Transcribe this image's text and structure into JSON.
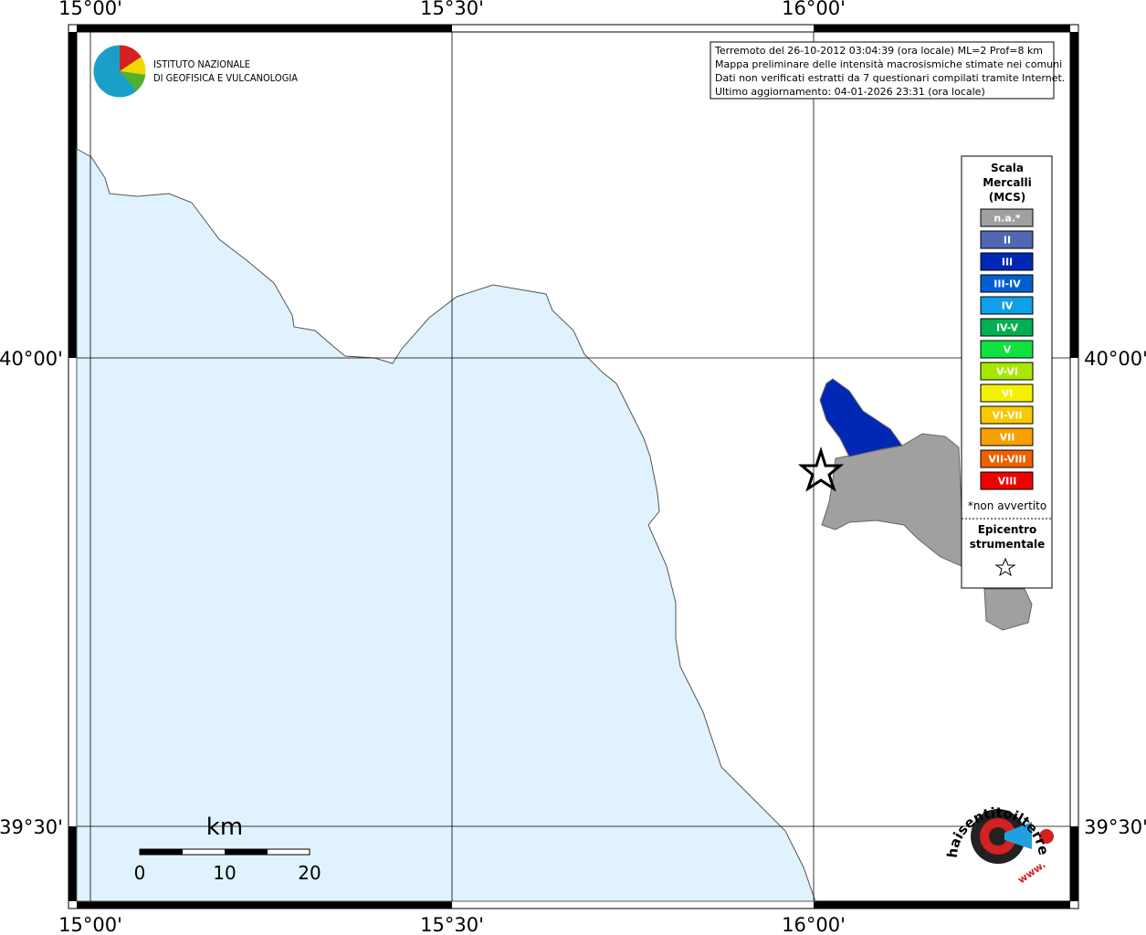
{
  "map": {
    "lon_labels": [
      "15°00'",
      "15°30'",
      "16°00'"
    ],
    "lat_labels": [
      "40°00'",
      "39°30'"
    ],
    "logo_ingv": [
      "ISTITUTO NAZIONALE",
      "DI GEOFISICA E VULCANOLOGIA"
    ],
    "info": [
      "Terremoto del 26-10-2012 03:04:39 (ora locale) ML=2 Prof=8 km",
      "Mappa preliminare delle intensità macrosismiche stimate nei comuni",
      "Dati non verificati estratti da 7 questionari compilati tramite Internet.",
      "Ultimo aggiornamento: 04-01-2026 23:31 (ora locale)"
    ],
    "legend": {
      "title": [
        "Scala",
        "Mercalli",
        "(MCS)"
      ],
      "items": [
        {
          "label": "n.a.*",
          "color": "#a0a0a0"
        },
        {
          "label": "II",
          "color": "#5068b4"
        },
        {
          "label": "III",
          "color": "#0028b4"
        },
        {
          "label": "III-IV",
          "color": "#0060d0"
        },
        {
          "label": "IV",
          "color": "#10a0e8"
        },
        {
          "label": "IV-V",
          "color": "#00b050"
        },
        {
          "label": "V",
          "color": "#10e040"
        },
        {
          "label": "V-VI",
          "color": "#a8e800"
        },
        {
          "label": "VI",
          "color": "#f4f000"
        },
        {
          "label": "VI-VII",
          "color": "#f8c800"
        },
        {
          "label": "VII",
          "color": "#f8a000"
        },
        {
          "label": "VII-VIII",
          "color": "#f06000"
        },
        {
          "label": "VIII",
          "color": "#f00000"
        }
      ],
      "note": "*non avvertito",
      "epicenter": [
        "Epicentro",
        "strumentale"
      ]
    },
    "scale": {
      "unit": "km",
      "ticks": [
        "0",
        "10",
        "20"
      ]
    },
    "logo_hsit": [
      "haisentitoilterremoto.it",
      "www."
    ]
  }
}
